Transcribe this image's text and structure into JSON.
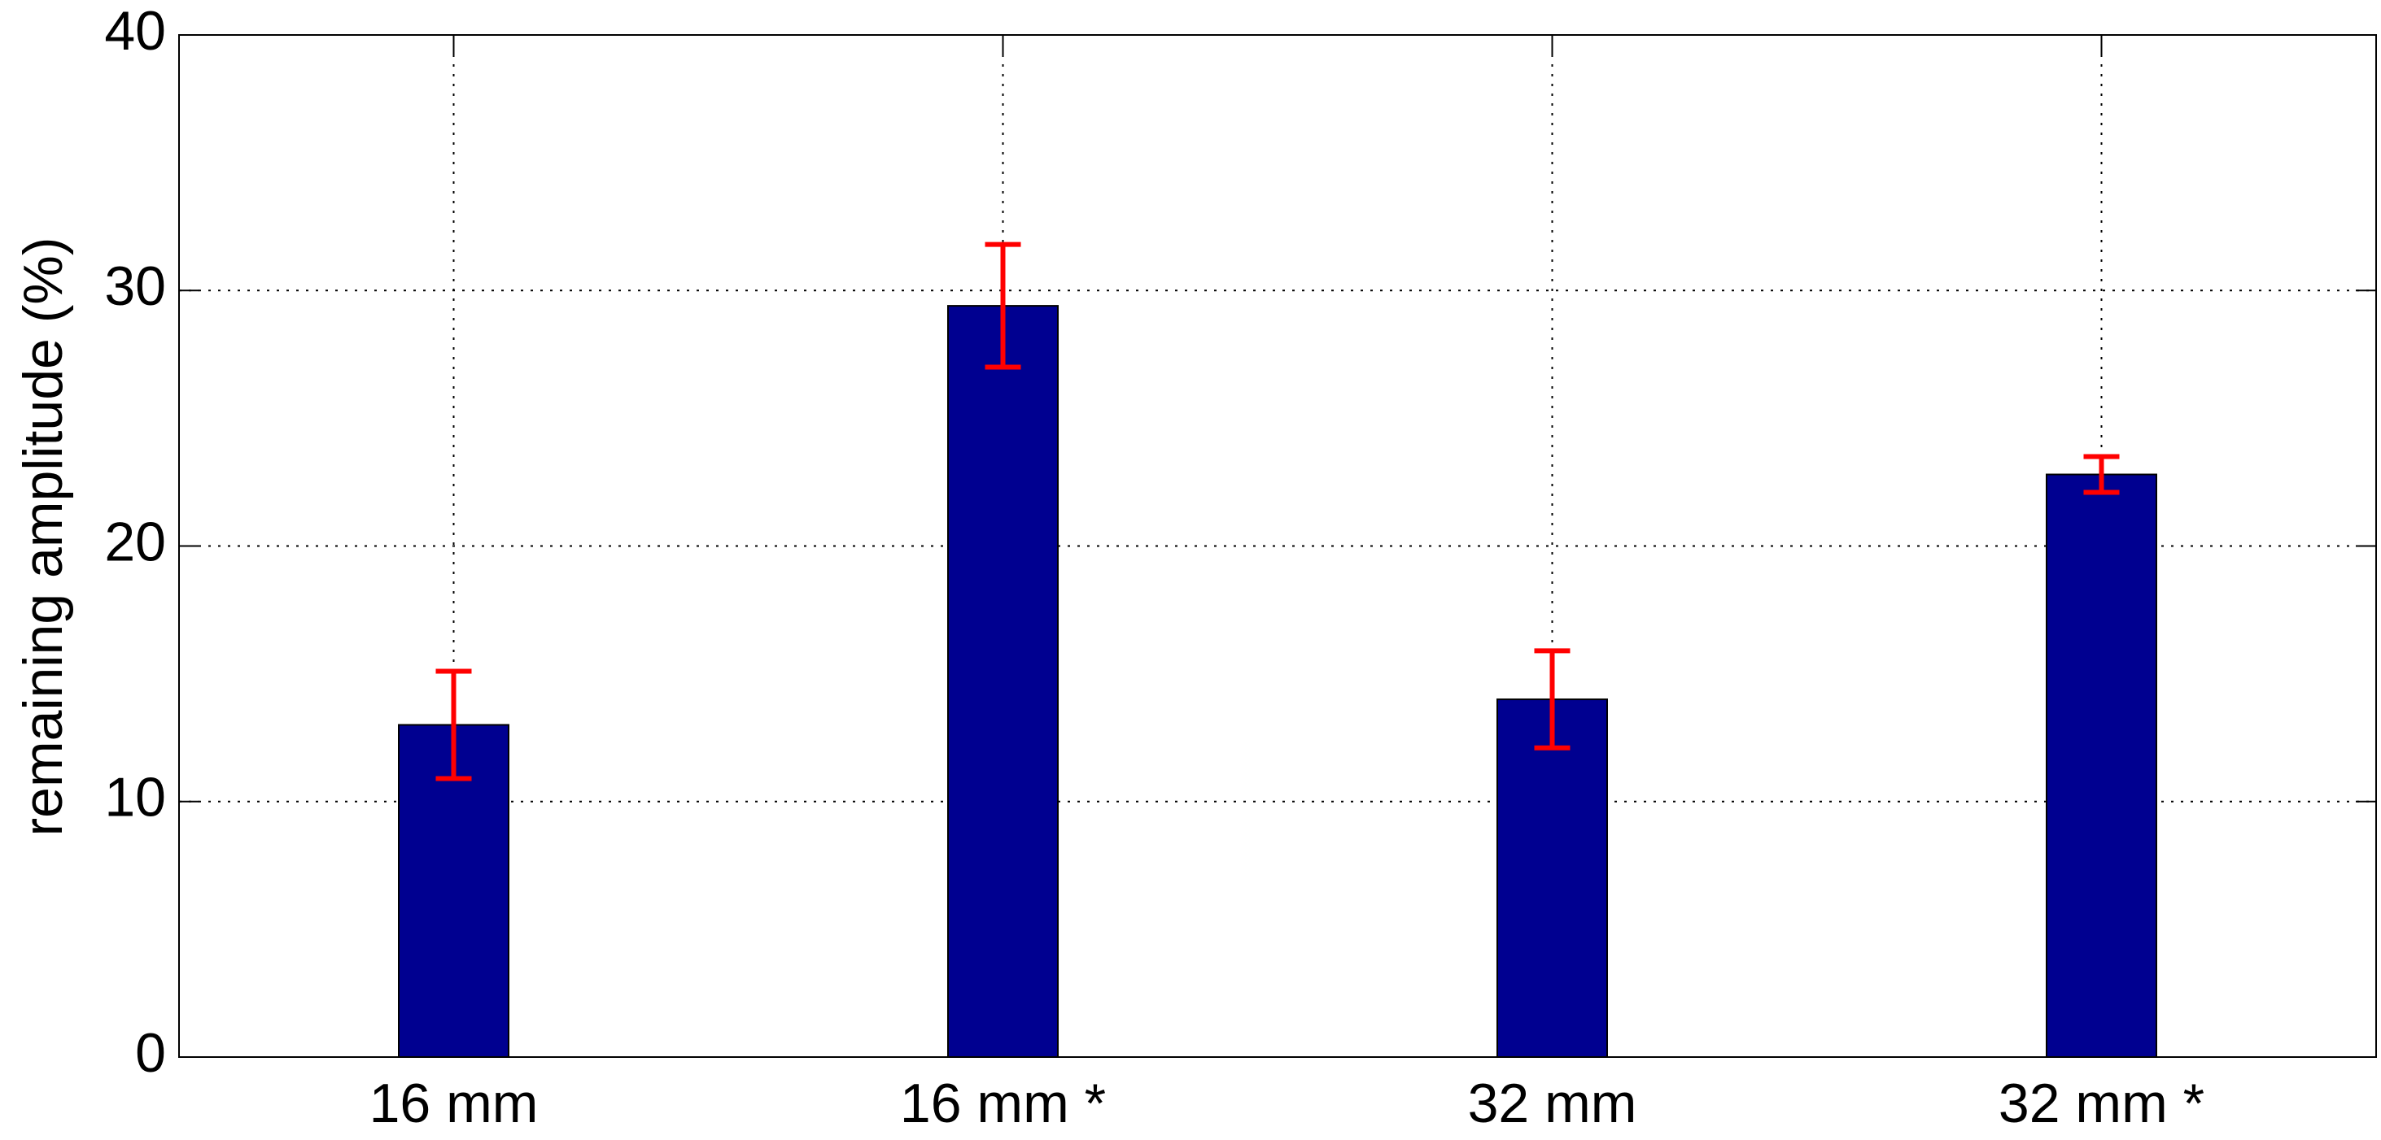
{
  "chart_data": {
    "type": "bar",
    "y_label": "remaining amplitude (%)",
    "categories": [
      "16 mm",
      "16 mm *",
      "32 mm",
      "32 mm *"
    ],
    "values": [
      13,
      29.4,
      14,
      22.8
    ],
    "errors": [
      2.1,
      2.4,
      1.9,
      0.7
    ],
    "color": "#000090",
    "error_color": "#ff0000",
    "ylim": [
      0,
      40
    ],
    "yticks": [
      0,
      10,
      20,
      30,
      40
    ],
    "grid": true
  }
}
